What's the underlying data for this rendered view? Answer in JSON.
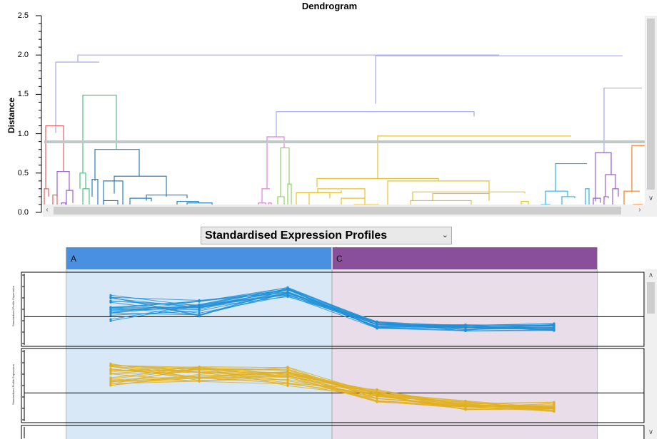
{
  "dendrogram": {
    "title": "Dendrogram",
    "ylabel": "Distance",
    "yticks": [
      "0.0",
      "0.5",
      "1.0",
      "1.5",
      "2.0",
      "2.5"
    ],
    "ylim": [
      0,
      2.5
    ],
    "cut_height": 0.9,
    "colors": {
      "root": "#a8a8f0",
      "red": "#e06060",
      "purple": "#9a60d0",
      "green": "#50c080",
      "blue": "#2a80c0",
      "pink": "#e080e0",
      "lightgreen": "#90d060",
      "yellow": "#e8c030",
      "cyan": "#30b0e0",
      "orange": "#f08020",
      "cutline": "#c0c8c8"
    }
  },
  "profile_selector": {
    "value": "Standardised Expression Profiles",
    "arrow": "chevron-down-icon"
  },
  "clusters": [
    {
      "label": "A",
      "color": "#4a90e2",
      "bg": "#d8e8f7"
    },
    {
      "label": "C",
      "color": "#8a4f9a",
      "bg": "#e8dde8"
    }
  ],
  "profiles_axis_label": "Standardised Profile Expression",
  "profile_colors": {
    "blue": "#1e90d8",
    "gold": "#e0b020"
  }
}
